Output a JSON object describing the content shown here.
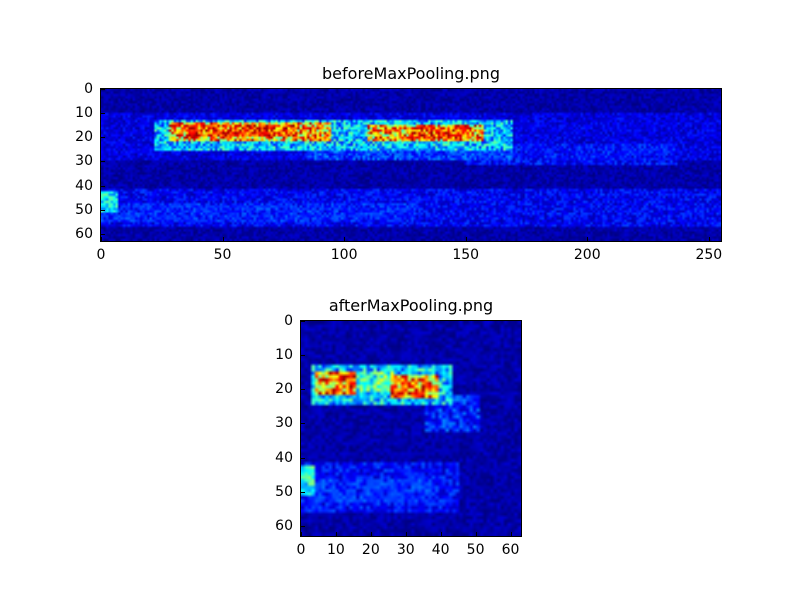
{
  "page": {
    "background": "#ffffff",
    "text_color": "#000000"
  },
  "chart_data": [
    {
      "type": "heatmap",
      "title": "beforeMaxPooling.png",
      "colormap": "jet",
      "cols": 256,
      "rows": 64,
      "x_range": [
        0,
        255
      ],
      "y_range": [
        0,
        63
      ],
      "x_ticks": [
        0,
        50,
        100,
        150,
        200,
        250
      ],
      "y_ticks": [
        0,
        10,
        20,
        30,
        40,
        50,
        60
      ],
      "legend": "none",
      "seed": 7,
      "features": [
        {
          "label": "background-noise",
          "r": [
            0,
            64
          ],
          "c": [
            0,
            256
          ],
          "v": 0.0,
          "n": 0.08
        },
        {
          "label": "upper-diffuse-band",
          "r": [
            10,
            30
          ],
          "c": [
            0,
            256
          ],
          "v": 0.03,
          "n": 0.13
        },
        {
          "label": "activation-band",
          "r": [
            13,
            26
          ],
          "c": [
            22,
            170
          ],
          "v": 0.15,
          "n": 0.33
        },
        {
          "label": "hot-cluster-left",
          "r": [
            14,
            22
          ],
          "c": [
            28,
            95
          ],
          "v": 0.42,
          "n": 0.55
        },
        {
          "label": "hot-cluster-right",
          "r": [
            15,
            22
          ],
          "c": [
            110,
            158
          ],
          "v": 0.42,
          "n": 0.55
        },
        {
          "label": "red-core-left",
          "r": [
            15,
            20
          ],
          "c": [
            35,
            80
          ],
          "v": 0.55,
          "n": 0.45
        },
        {
          "label": "red-core-right",
          "r": [
            16,
            21
          ],
          "c": [
            128,
            153
          ],
          "v": 0.55,
          "n": 0.45
        },
        {
          "label": "right-trail",
          "r": [
            23,
            32
          ],
          "c": [
            150,
            238
          ],
          "v": 0.04,
          "n": 0.17
        },
        {
          "label": "band-underside",
          "r": [
            24,
            30
          ],
          "c": [
            85,
            170
          ],
          "v": 0.08,
          "n": 0.2
        },
        {
          "label": "left-edge-blob",
          "r": [
            43,
            52
          ],
          "c": [
            0,
            7
          ],
          "v": 0.24,
          "n": 0.25
        },
        {
          "label": "lower-diffuse-band",
          "r": [
            42,
            58
          ],
          "c": [
            0,
            256
          ],
          "v": 0.04,
          "n": 0.15
        },
        {
          "label": "lower-band-left-half",
          "r": [
            48,
            56
          ],
          "c": [
            0,
            130
          ],
          "v": 0.06,
          "n": 0.17
        }
      ]
    },
    {
      "type": "heatmap",
      "title": "afterMaxPooling.png",
      "colormap": "jet",
      "cols": 64,
      "rows": 64,
      "x_range": [
        0,
        63
      ],
      "y_range": [
        0,
        63
      ],
      "x_ticks": [
        0,
        10,
        20,
        30,
        40,
        50,
        60
      ],
      "y_ticks": [
        0,
        10,
        20,
        30,
        40,
        50,
        60
      ],
      "legend": "none",
      "seed": 13,
      "features": [
        {
          "label": "background-noise",
          "r": [
            0,
            64
          ],
          "c": [
            0,
            64
          ],
          "v": 0.0,
          "n": 0.08
        },
        {
          "label": "activation-band",
          "r": [
            13,
            25
          ],
          "c": [
            3,
            44
          ],
          "v": 0.16,
          "n": 0.33
        },
        {
          "label": "hot-cluster-left",
          "r": [
            15,
            22
          ],
          "c": [
            4,
            16
          ],
          "v": 0.48,
          "n": 0.5
        },
        {
          "label": "hot-cluster-right",
          "r": [
            16,
            23
          ],
          "c": [
            26,
            40
          ],
          "v": 0.48,
          "n": 0.5
        },
        {
          "label": "band-middle",
          "r": [
            15,
            21
          ],
          "c": [
            16,
            27
          ],
          "v": 0.26,
          "n": 0.35
        },
        {
          "label": "right-trail",
          "r": [
            22,
            33
          ],
          "c": [
            36,
            52
          ],
          "v": 0.06,
          "n": 0.2
        },
        {
          "label": "left-edge-blob",
          "r": [
            43,
            52
          ],
          "c": [
            0,
            4
          ],
          "v": 0.26,
          "n": 0.25
        },
        {
          "label": "lower-diffuse-band",
          "r": [
            42,
            57
          ],
          "c": [
            0,
            46
          ],
          "v": 0.05,
          "n": 0.16
        },
        {
          "label": "lower-band-core",
          "r": [
            47,
            54
          ],
          "c": [
            2,
            40
          ],
          "v": 0.07,
          "n": 0.17
        }
      ]
    }
  ]
}
